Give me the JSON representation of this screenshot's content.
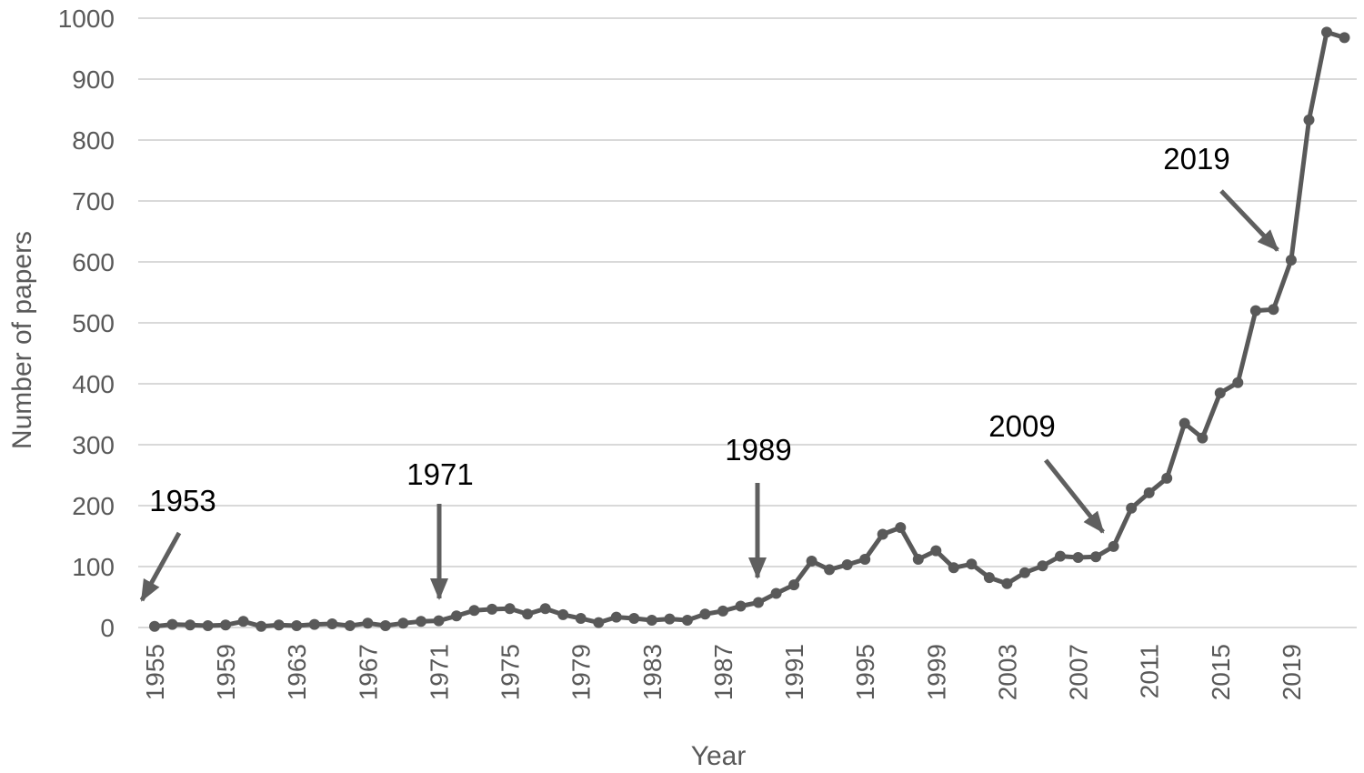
{
  "chart_data": {
    "type": "line",
    "title": "",
    "xlabel": "Year",
    "ylabel": "Number of papers",
    "ylim": [
      0,
      1000
    ],
    "yticks": [
      0,
      100,
      200,
      300,
      400,
      500,
      600,
      700,
      800,
      900,
      1000
    ],
    "xticks": [
      "1955",
      "1959",
      "1963",
      "1967",
      "1971",
      "1975",
      "1979",
      "1983",
      "1987",
      "1991",
      "1995",
      "1999",
      "2003",
      "2007",
      "2011",
      "2015",
      "2019"
    ],
    "grid": true,
    "legend": "none",
    "colors": {
      "line": "#595959",
      "grid": "#d9d9d9",
      "axis_text": "#595959",
      "annotation_text": "#000000"
    },
    "x": [
      1955,
      1956,
      1957,
      1958,
      1959,
      1960,
      1961,
      1962,
      1963,
      1964,
      1965,
      1966,
      1967,
      1968,
      1969,
      1970,
      1971,
      1972,
      1973,
      1974,
      1975,
      1976,
      1977,
      1978,
      1979,
      1980,
      1981,
      1982,
      1983,
      1984,
      1985,
      1986,
      1987,
      1988,
      1989,
      1990,
      1991,
      1992,
      1993,
      1994,
      1995,
      1996,
      1997,
      1998,
      1999,
      2000,
      2001,
      2002,
      2003,
      2004,
      2005,
      2006,
      2007,
      2008,
      2009,
      2010,
      2011,
      2012,
      2013,
      2014,
      2015,
      2016,
      2017,
      2018,
      2019,
      2020,
      2021,
      2022
    ],
    "series": [
      {
        "values": [
          2,
          5,
          4,
          3,
          4,
          10,
          2,
          4,
          3,
          5,
          6,
          3,
          7,
          3,
          7,
          10,
          11,
          19,
          28,
          30,
          31,
          22,
          31,
          21,
          15,
          8,
          17,
          15,
          12,
          14,
          12,
          22,
          27,
          35,
          41,
          56,
          70,
          109,
          95,
          103,
          112,
          153,
          164,
          112,
          126,
          98,
          104,
          82,
          72,
          90,
          101,
          117,
          115,
          116,
          133,
          196,
          221,
          245,
          335,
          311,
          385,
          402,
          520,
          522,
          603,
          833,
          977,
          968
        ]
      }
    ],
    "annotations": [
      {
        "label": "1953",
        "direction": "down-left"
      },
      {
        "label": "1971",
        "direction": "down"
      },
      {
        "label": "1989",
        "direction": "down"
      },
      {
        "label": "2009",
        "direction": "down-right"
      },
      {
        "label": "2019",
        "direction": "down-right"
      }
    ]
  }
}
